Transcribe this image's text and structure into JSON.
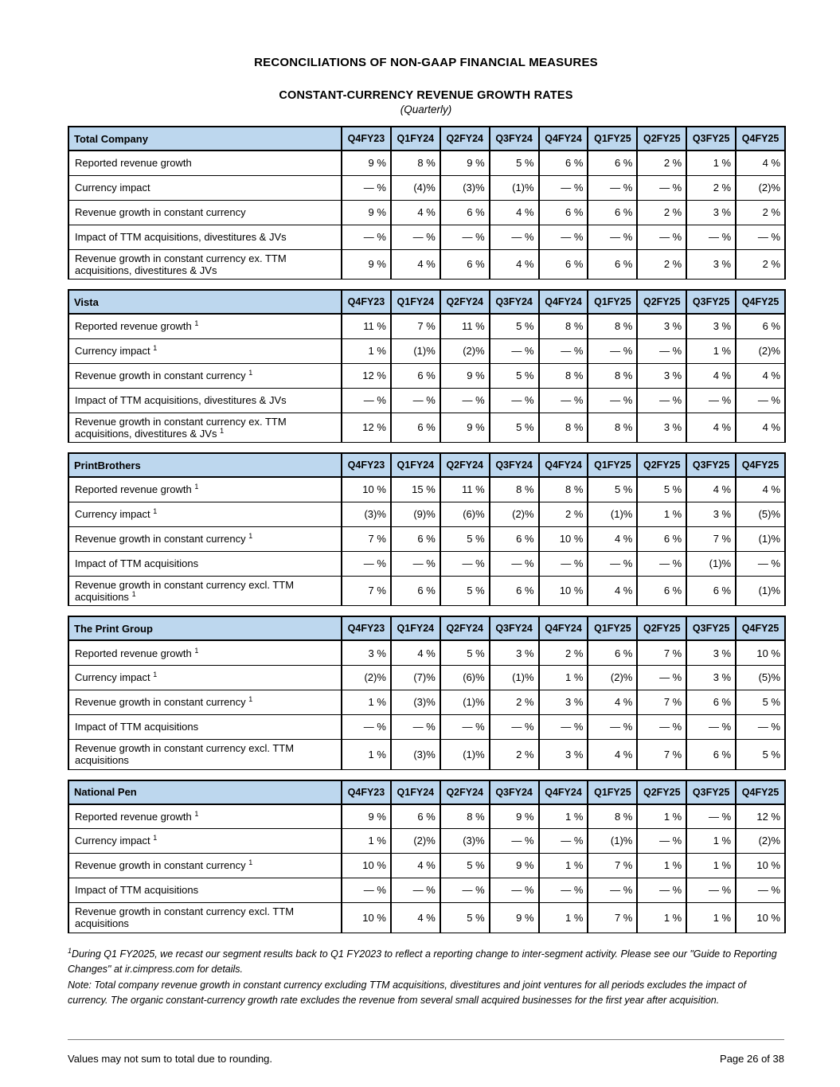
{
  "document": {
    "title": "RECONCILIATIONS OF NON-GAAP FINANCIAL MEASURES",
    "subtitle": "CONSTANT-CURRENCY REVENUE GROWTH RATES",
    "period_qualifier": "(Quarterly)"
  },
  "columns": [
    "Q4FY23",
    "Q1FY24",
    "Q2FY24",
    "Q3FY24",
    "Q4FY24",
    "Q1FY25",
    "Q2FY25",
    "Q3FY25",
    "Q4FY25"
  ],
  "tables": [
    {
      "name": "Total Company",
      "rows": [
        {
          "label": "Reported revenue growth",
          "sup": "",
          "values": [
            "9 %",
            "8 %",
            "9 %",
            "5 %",
            "6 %",
            "6 %",
            "2 %",
            "1 %",
            "4 %"
          ]
        },
        {
          "label": "Currency impact",
          "sup": "",
          "values": [
            "— %",
            "(4)%",
            "(3)%",
            "(1)%",
            "— %",
            "— %",
            "— %",
            "2 %",
            "(2)%"
          ]
        },
        {
          "label": "Revenue growth in constant currency",
          "sup": "",
          "values": [
            "9 %",
            "4 %",
            "6 %",
            "4 %",
            "6 %",
            "6 %",
            "2 %",
            "3 %",
            "2 %"
          ]
        },
        {
          "label": "Impact of TTM acquisitions, divestitures & JVs",
          "sup": "",
          "values": [
            "— %",
            "— %",
            "— %",
            "— %",
            "— %",
            "— %",
            "— %",
            "— %",
            "— %"
          ]
        },
        {
          "label": "Revenue growth in constant currency ex. TTM acquisitions, divestitures & JVs",
          "sup": "",
          "values": [
            "9 %",
            "4 %",
            "6 %",
            "4 %",
            "6 %",
            "6 %",
            "2 %",
            "3 %",
            "2 %"
          ]
        }
      ]
    },
    {
      "name": "Vista",
      "rows": [
        {
          "label": "Reported revenue growth",
          "sup": "1",
          "values": [
            "11 %",
            "7 %",
            "11 %",
            "5 %",
            "8 %",
            "8 %",
            "3 %",
            "3 %",
            "6 %"
          ]
        },
        {
          "label": "Currency impact",
          "sup": "1",
          "values": [
            "1 %",
            "(1)%",
            "(2)%",
            "— %",
            "— %",
            "— %",
            "— %",
            "1 %",
            "(2)%"
          ]
        },
        {
          "label": "Revenue growth in constant currency",
          "sup": "1",
          "values": [
            "12 %",
            "6 %",
            "9 %",
            "5 %",
            "8 %",
            "8 %",
            "3 %",
            "4 %",
            "4 %"
          ]
        },
        {
          "label": "Impact of TTM acquisitions, divestitures & JVs",
          "sup": "",
          "values": [
            "— %",
            "— %",
            "— %",
            "— %",
            "— %",
            "— %",
            "— %",
            "— %",
            "— %"
          ]
        },
        {
          "label": "Revenue growth in constant currency ex. TTM acquisitions, divestitures & JVs",
          "sup": "1",
          "values": [
            "12 %",
            "6 %",
            "9 %",
            "5 %",
            "8 %",
            "8 %",
            "3 %",
            "4 %",
            "4 %"
          ]
        }
      ]
    },
    {
      "name": "PrintBrothers",
      "rows": [
        {
          "label": "Reported revenue growth",
          "sup": "1",
          "values": [
            "10 %",
            "15 %",
            "11 %",
            "8 %",
            "8 %",
            "5 %",
            "5 %",
            "4 %",
            "4 %"
          ]
        },
        {
          "label": "Currency impact",
          "sup": "1",
          "values": [
            "(3)%",
            "(9)%",
            "(6)%",
            "(2)%",
            "2 %",
            "(1)%",
            "1 %",
            "3 %",
            "(5)%"
          ]
        },
        {
          "label": "Revenue growth in constant currency",
          "sup": "1",
          "values": [
            "7 %",
            "6 %",
            "5 %",
            "6 %",
            "10 %",
            "4 %",
            "6 %",
            "7 %",
            "(1)%"
          ]
        },
        {
          "label": "Impact of TTM acquisitions",
          "sup": "",
          "values": [
            "— %",
            "— %",
            "— %",
            "— %",
            "— %",
            "— %",
            "— %",
            "(1)%",
            "— %"
          ]
        },
        {
          "label": "Revenue growth in constant currency excl. TTM acquisitions",
          "sup": "1",
          "values": [
            "7 %",
            "6 %",
            "5 %",
            "6 %",
            "10 %",
            "4 %",
            "6 %",
            "6 %",
            "(1)%"
          ]
        }
      ]
    },
    {
      "name": "The Print Group",
      "rows": [
        {
          "label": "Reported revenue growth",
          "sup": "1",
          "values": [
            "3 %",
            "4 %",
            "5 %",
            "3 %",
            "2 %",
            "6 %",
            "7 %",
            "3 %",
            "10 %"
          ]
        },
        {
          "label": "Currency impact",
          "sup": "1",
          "values": [
            "(2)%",
            "(7)%",
            "(6)%",
            "(1)%",
            "1 %",
            "(2)%",
            "— %",
            "3 %",
            "(5)%"
          ]
        },
        {
          "label": "Revenue growth in constant currency",
          "sup": "1",
          "values": [
            "1 %",
            "(3)%",
            "(1)%",
            "2 %",
            "3 %",
            "4 %",
            "7 %",
            "6 %",
            "5 %"
          ]
        },
        {
          "label": "Impact of TTM acquisitions",
          "sup": "",
          "values": [
            "— %",
            "— %",
            "— %",
            "— %",
            "— %",
            "— %",
            "— %",
            "— %",
            "— %"
          ]
        },
        {
          "label": "Revenue growth in constant currency excl. TTM acquisitions",
          "sup": "",
          "values": [
            "1 %",
            "(3)%",
            "(1)%",
            "2 %",
            "3 %",
            "4 %",
            "7 %",
            "6 %",
            "5 %"
          ]
        }
      ]
    },
    {
      "name": "National Pen",
      "rows": [
        {
          "label": "Reported revenue growth",
          "sup": "1",
          "values": [
            "9 %",
            "6 %",
            "8 %",
            "9 %",
            "1 %",
            "8 %",
            "1 %",
            "— %",
            "12 %"
          ]
        },
        {
          "label": "Currency impact",
          "sup": "1",
          "values": [
            "1 %",
            "(2)%",
            "(3)%",
            "— %",
            "— %",
            "(1)%",
            "— %",
            "1 %",
            "(2)%"
          ]
        },
        {
          "label": "Revenue growth in constant currency",
          "sup": "1",
          "values": [
            "10 %",
            "4 %",
            "5 %",
            "9 %",
            "1 %",
            "7 %",
            "1 %",
            "1 %",
            "10 %"
          ]
        },
        {
          "label": "Impact of TTM acquisitions",
          "sup": "",
          "values": [
            "— %",
            "— %",
            "— %",
            "— %",
            "— %",
            "— %",
            "— %",
            "— %",
            "— %"
          ]
        },
        {
          "label": "Revenue growth in constant currency excl. TTM acquisitions",
          "sup": "",
          "values": [
            "10 %",
            "4 %",
            "5 %",
            "9 %",
            "1 %",
            "7 %",
            "1 %",
            "1 %",
            "10 %"
          ]
        }
      ]
    }
  ],
  "footnotes": [
    {
      "sup": "1",
      "text": "During Q1 FY2025, we recast our segment results back to Q1 FY2023 to reflect a reporting change to inter-segment activity. Please see our \"Guide to Reporting Changes\" at ir.cimpress.com for details."
    },
    {
      "sup": "",
      "text": "Note: Total company revenue growth in constant currency excluding TTM acquisitions, divestitures and joint ventures for all periods excludes the impact of currency. The organic constant-currency growth rate excludes the revenue from several small acquired businesses for the first year after acquisition."
    }
  ],
  "footer": {
    "note": "Values may not sum to total due to rounding.",
    "page": "Page 26 of 38"
  },
  "colors": {
    "table_header_bg": "#BDD7EE",
    "table_border": "#000000"
  }
}
